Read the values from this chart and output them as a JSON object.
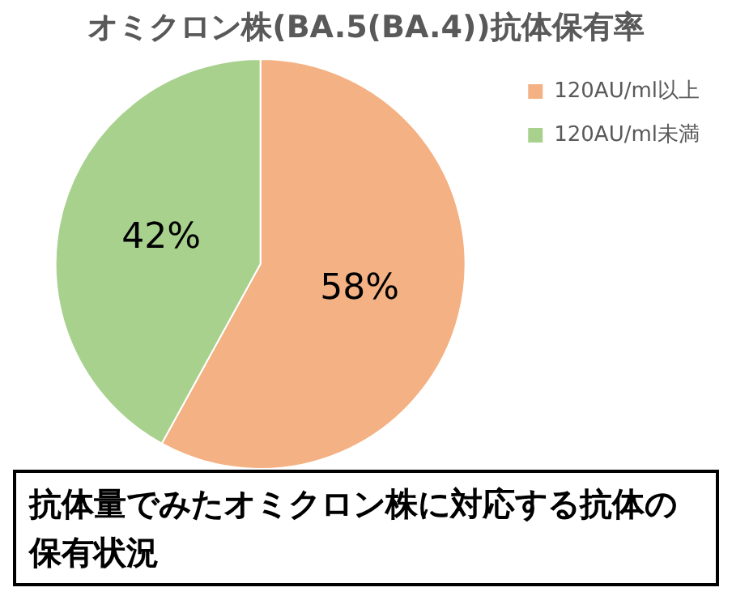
{
  "chart_data": {
    "type": "pie",
    "title": "オミクロン株(BA.5(BA.4))抗体保有率",
    "categories": [
      "120AU/ml以上",
      "120AU/ml未満"
    ],
    "values": [
      58,
      42
    ],
    "colors": [
      "#f4b183",
      "#a9d18e"
    ],
    "legend": "top right",
    "value_labels": [
      "58%",
      "42%"
    ],
    "annotations": [
      "抗体量でみたオミクロン株に対応する抗体の保有状況"
    ]
  }
}
